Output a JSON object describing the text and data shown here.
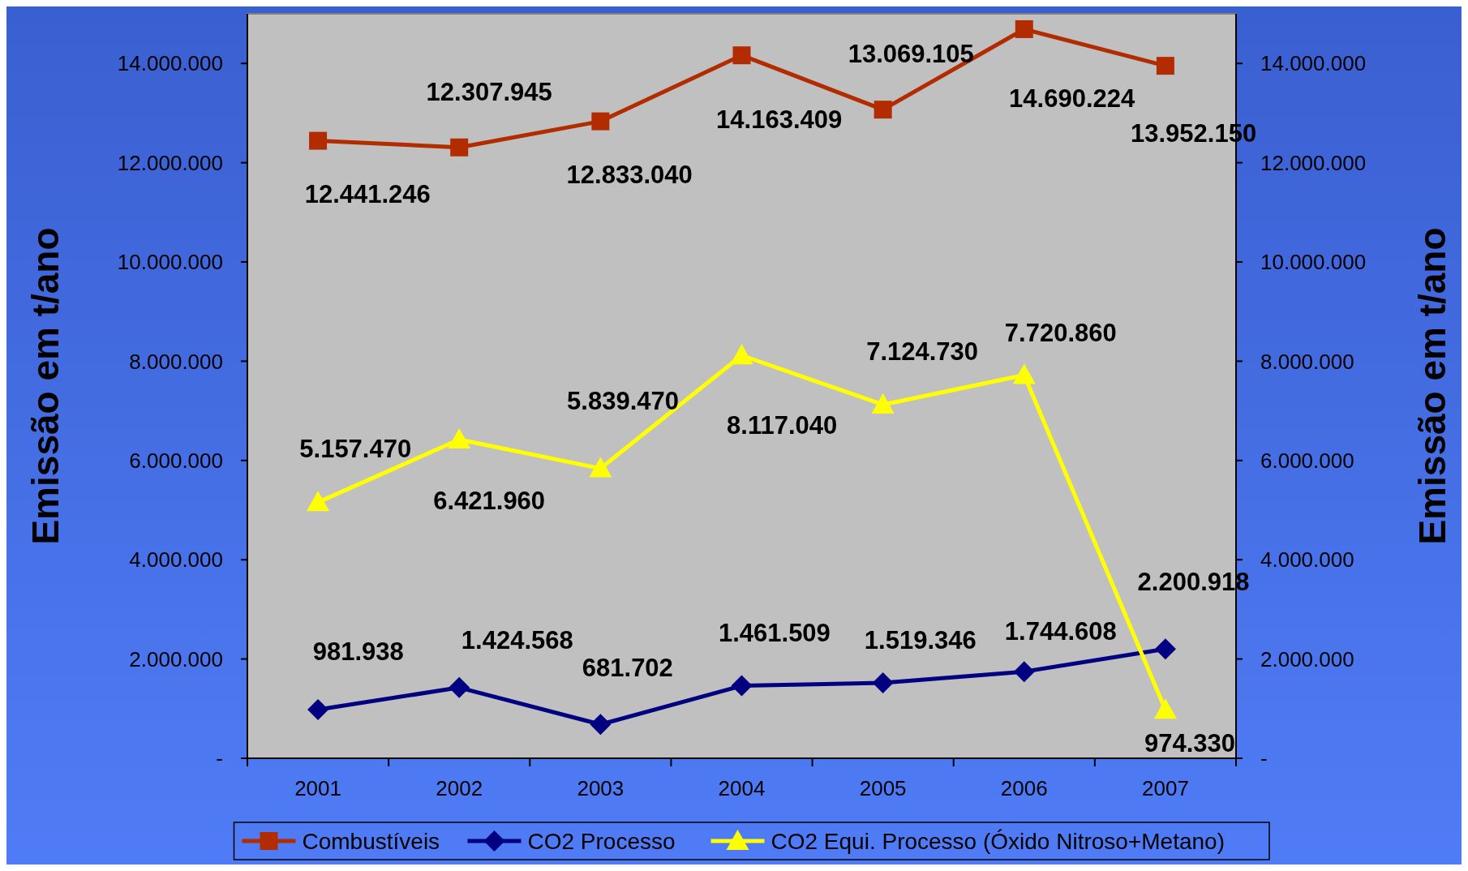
{
  "chart_data": {
    "type": "line",
    "categories": [
      "2001",
      "2002",
      "2003",
      "2004",
      "2005",
      "2006",
      "2007"
    ],
    "ylabel": "Emissão em t/ano",
    "y2label": "Emissão em t/ano",
    "ylim": [
      0,
      15000000
    ],
    "yticks": [
      {
        "value": 0,
        "label": "-"
      },
      {
        "value": 2000000,
        "label": "2.000.000"
      },
      {
        "value": 4000000,
        "label": "4.000.000"
      },
      {
        "value": 6000000,
        "label": "6.000.000"
      },
      {
        "value": 8000000,
        "label": "8.000.000"
      },
      {
        "value": 10000000,
        "label": "10.000.000"
      },
      {
        "value": 12000000,
        "label": "12.000.000"
      },
      {
        "value": 14000000,
        "label": "14.000.000"
      }
    ],
    "y2lim": [
      0,
      15000000
    ],
    "y2ticks": [
      {
        "value": 0,
        "label": "-"
      },
      {
        "value": 2000000,
        "label": "2.000.000"
      },
      {
        "value": 4000000,
        "label": "4.000.000"
      },
      {
        "value": 6000000,
        "label": "6.000.000"
      },
      {
        "value": 8000000,
        "label": "8.000.000"
      },
      {
        "value": 10000000,
        "label": "10.000.000"
      },
      {
        "value": 12000000,
        "label": "12.000.000"
      },
      {
        "value": 14000000,
        "label": "14.000.000"
      }
    ],
    "series": [
      {
        "name": "Combustíveis",
        "color": "#b22c00",
        "marker": "square",
        "values": [
          12441246,
          12307945,
          12833040,
          14163409,
          13069105,
          14690224,
          13952150
        ],
        "value_labels": [
          "12.441.246",
          "12.307.945",
          "12.833.040",
          "14.163.409",
          "13.069.105",
          "14.690.224",
          "13.952.150"
        ]
      },
      {
        "name": "CO2 Processo",
        "color": "#000080",
        "marker": "diamond",
        "values": [
          981938,
          1424568,
          681702,
          1461509,
          1519346,
          1744608,
          2200918
        ],
        "value_labels": [
          "981.938",
          "1.424.568",
          "681.702",
          "1.461.509",
          "1.519.346",
          "1.744.608",
          "2.200.918"
        ]
      },
      {
        "name": "CO2 Equi. Processo (Óxido Nitroso+Metano)",
        "color": "#ffff00",
        "marker": "triangle",
        "values": [
          5157470,
          6421960,
          5839470,
          8117040,
          7124730,
          7720860,
          974330
        ],
        "value_labels": [
          "5.157.470",
          "6.421.960",
          "5.839.470",
          "8.117.040",
          "7.124.730",
          "7.720.860",
          "974.330"
        ]
      }
    ],
    "grid": false,
    "legend": "bottom",
    "line_style": "solid"
  }
}
